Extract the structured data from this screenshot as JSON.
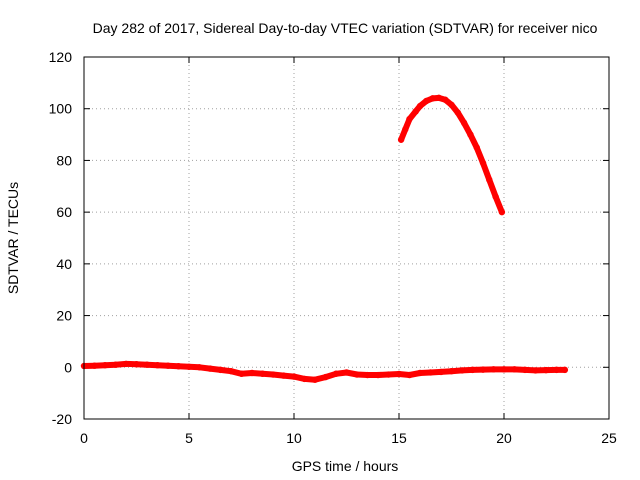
{
  "chart_data": {
    "type": "scatter",
    "title": "Day 282 of 2017, Sidereal Day-to-day VTEC variation (SDTVAR) for receiver nico",
    "xlabel": "GPS time / hours",
    "ylabel": "SDTVAR / TECUs",
    "xlim": [
      0,
      25
    ],
    "ylim": [
      -20,
      120
    ],
    "xticks": [
      0,
      5,
      10,
      15,
      20,
      25
    ],
    "yticks": [
      -20,
      0,
      20,
      40,
      60,
      80,
      100,
      120
    ],
    "grid": true,
    "series": [
      {
        "name": "baseline",
        "color": "#ff0000",
        "x": [
          0,
          0.5,
          1,
          1.5,
          2,
          2.5,
          3,
          3.5,
          4,
          4.5,
          5,
          5.5,
          6,
          6.5,
          7,
          7.5,
          8,
          8.5,
          9,
          9.5,
          10,
          10.5,
          11,
          11.5,
          12,
          12.5,
          13,
          13.5,
          14,
          14.5,
          15,
          15.5,
          16,
          16.5,
          17,
          17.5,
          18,
          18.5,
          19,
          19.5,
          20,
          20.5,
          21,
          21.5,
          22,
          22.5,
          22.9
        ],
        "y": [
          0.5,
          0.6,
          0.8,
          1.0,
          1.3,
          1.2,
          1.0,
          0.8,
          0.6,
          0.4,
          0.2,
          0,
          -0.5,
          -1.0,
          -1.5,
          -2.5,
          -2.2,
          -2.5,
          -2.8,
          -3.2,
          -3.6,
          -4.5,
          -4.8,
          -3.8,
          -2.5,
          -2.0,
          -2.8,
          -3.0,
          -3.0,
          -2.8,
          -2.6,
          -3.0,
          -2.2,
          -2.0,
          -1.8,
          -1.5,
          -1.2,
          -1.0,
          -0.9,
          -0.8,
          -0.8,
          -0.8,
          -1.0,
          -1.2,
          -1.1,
          -1.0,
          -1.0
        ]
      },
      {
        "name": "arc",
        "color": "#ff0000",
        "x": [
          15.1,
          15.3,
          15.5,
          15.8,
          16.0,
          16.3,
          16.6,
          16.9,
          17.2,
          17.5,
          17.8,
          18.1,
          18.4,
          18.7,
          19.0,
          19.3,
          19.6,
          19.9
        ],
        "y": [
          88,
          92,
          96,
          99,
          101,
          103,
          104,
          104.2,
          103.5,
          101.5,
          98.5,
          94.5,
          90,
          85,
          79,
          72.5,
          66,
          60
        ]
      }
    ]
  }
}
